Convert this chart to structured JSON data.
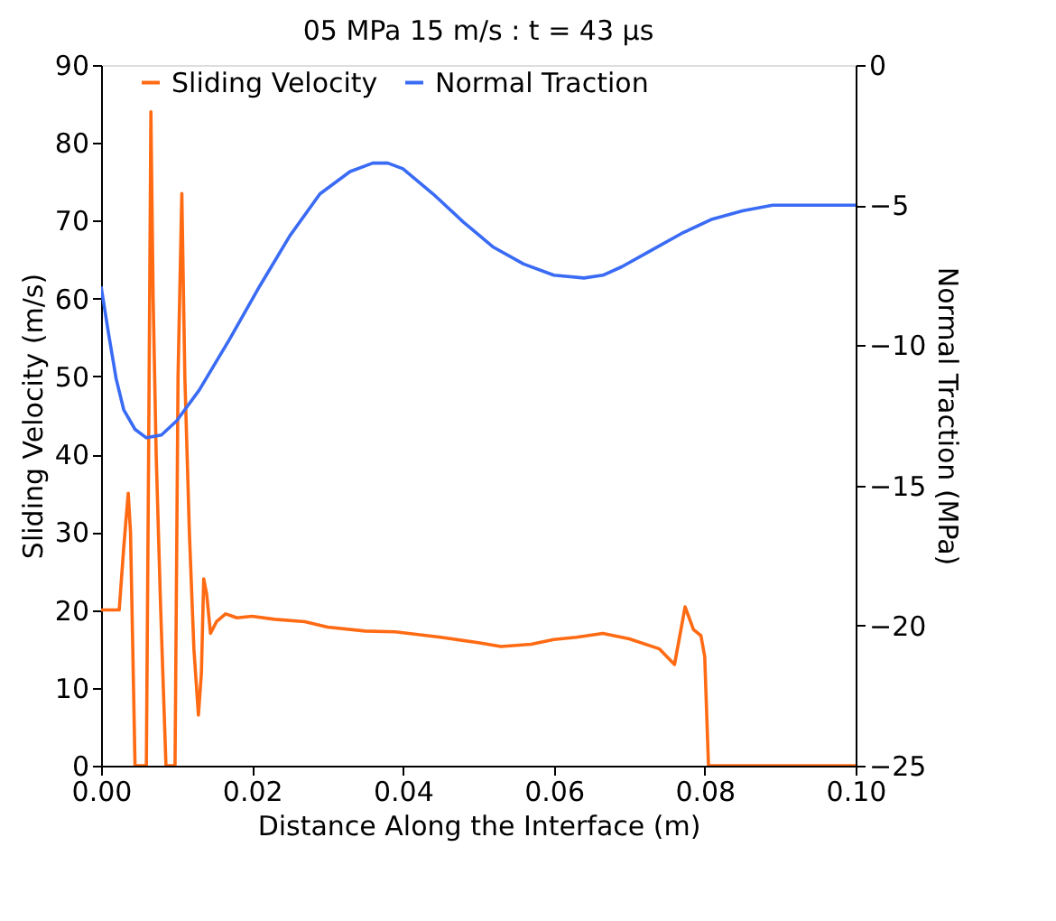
{
  "chart_data": {
    "type": "line",
    "title": "05 MPa 15 m/s : t = 43 μs",
    "xlabel": "Distance Along the Interface (m)",
    "ylabel": "Sliding Velocity (m/s)",
    "y2label": "Normal Traction (MPa)",
    "xlim": [
      0,
      0.1
    ],
    "xticks": [
      {
        "value": 0,
        "label": "0.00"
      },
      0.02,
      0.04,
      0.06,
      0.08,
      {
        "value": 0.1,
        "label": "0.10"
      }
    ],
    "ylim": [
      0,
      90
    ],
    "yticks": [
      0,
      10,
      20,
      30,
      40,
      50,
      60,
      70,
      80,
      90
    ],
    "y2lim": [
      -25,
      0
    ],
    "y2ticks": [
      -25,
      -20,
      -15,
      -10,
      -5,
      0
    ],
    "legend": "top",
    "grid": false,
    "marker": "none",
    "line_style": "solid",
    "series": [
      {
        "name": "Sliding Velocity",
        "color": "#ff6a13",
        "x": [
          0.0,
          0.0024,
          0.003,
          0.0036,
          0.0039,
          0.0045,
          0.0055,
          0.006,
          0.0063,
          0.0066,
          0.0069,
          0.0073,
          0.0079,
          0.0086,
          0.0098,
          0.0102,
          0.0107,
          0.0111,
          0.0117,
          0.0123,
          0.0129,
          0.0133,
          0.0136,
          0.014,
          0.0145,
          0.0153,
          0.0165,
          0.018,
          0.02,
          0.023,
          0.027,
          0.03,
          0.035,
          0.039,
          0.045,
          0.05,
          0.053,
          0.057,
          0.06,
          0.063,
          0.0665,
          0.07,
          0.074,
          0.076,
          0.0774,
          0.0785,
          0.0795,
          0.08,
          0.0805,
          0.09,
          0.1
        ],
        "values": [
          20,
          20,
          28,
          35,
          30,
          0,
          0,
          0,
          40,
          84,
          60,
          40,
          20,
          0,
          0,
          50,
          73.5,
          50,
          30,
          15,
          6.5,
          12,
          24,
          22,
          17,
          18.5,
          19.5,
          19,
          19.2,
          18.8,
          18.5,
          17.8,
          17.3,
          17.2,
          16.5,
          15.8,
          15.3,
          15.6,
          16.2,
          16.5,
          17,
          16.3,
          15,
          13,
          20.4,
          17.5,
          16.7,
          14,
          0,
          0,
          0
        ]
      },
      {
        "name": "Normal Traction",
        "color": "#3a6bf5",
        "axis": "y2",
        "x": [
          0.0,
          0.001,
          0.002,
          0.003,
          0.0045,
          0.006,
          0.008,
          0.01,
          0.013,
          0.017,
          0.021,
          0.025,
          0.029,
          0.033,
          0.036,
          0.038,
          0.04,
          0.044,
          0.048,
          0.052,
          0.056,
          0.06,
          0.064,
          0.0665,
          0.069,
          0.073,
          0.077,
          0.081,
          0.085,
          0.089,
          0.0917,
          0.1
        ],
        "values": [
          -7.9,
          -9.6,
          -11.2,
          -12.3,
          -13.0,
          -13.3,
          -13.2,
          -12.7,
          -11.6,
          -9.8,
          -7.9,
          -6.1,
          -4.6,
          -3.8,
          -3.5,
          -3.5,
          -3.7,
          -4.6,
          -5.6,
          -6.5,
          -7.1,
          -7.5,
          -7.6,
          -7.5,
          -7.2,
          -6.6,
          -6.0,
          -5.5,
          -5.2,
          -5.0,
          -5.0,
          -5.0
        ]
      }
    ]
  }
}
